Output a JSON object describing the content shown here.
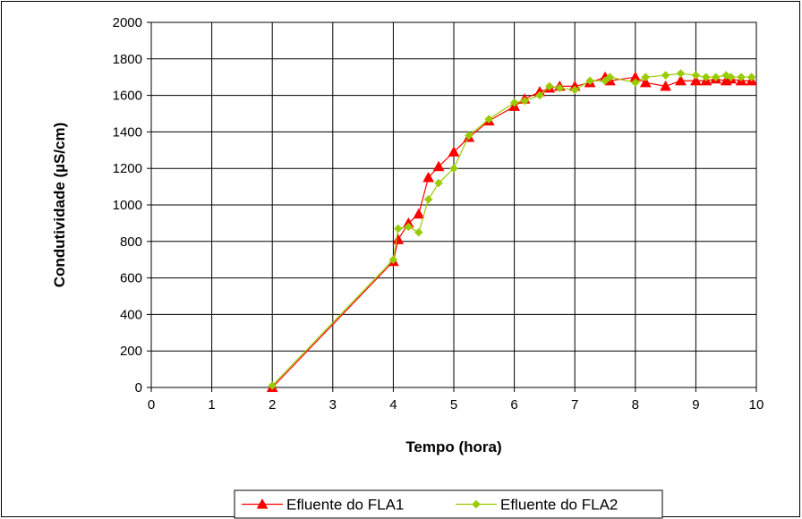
{
  "chart_data": {
    "type": "line",
    "title": "",
    "xlabel": "Tempo (hora)",
    "ylabel": "Condutividade (µS/cm)",
    "xlim": [
      0,
      10
    ],
    "ylim": [
      0,
      2000
    ],
    "xticks": [
      "0",
      "1",
      "2",
      "3",
      "4",
      "5",
      "6",
      "7",
      "8",
      "9",
      "10"
    ],
    "yticks": [
      "0",
      "200",
      "400",
      "600",
      "800",
      "1000",
      "1200",
      "1400",
      "1600",
      "1800",
      "2000"
    ],
    "grid": true,
    "legend_position": "bottom",
    "series": [
      {
        "name": "Efluente do FLA1",
        "color": "#ff0000",
        "marker": "triangle",
        "x": [
          2,
          4,
          4.08,
          4.25,
          4.42,
          4.58,
          4.75,
          5,
          5.25,
          5.58,
          6,
          6.17,
          6.42,
          6.58,
          6.75,
          7,
          7.25,
          7.5,
          7.58,
          8,
          8.17,
          8.5,
          8.75,
          9,
          9.17,
          9.33,
          9.5,
          9.58,
          9.75,
          9.92
        ],
        "y": [
          0,
          690,
          810,
          900,
          950,
          1150,
          1210,
          1290,
          1370,
          1460,
          1540,
          1580,
          1620,
          1640,
          1650,
          1650,
          1670,
          1700,
          1680,
          1700,
          1670,
          1650,
          1680,
          1680,
          1680,
          1690,
          1680,
          1690,
          1680,
          1680
        ]
      },
      {
        "name": "Efluente do FLA2",
        "color": "#99cc00",
        "marker": "diamond",
        "x": [
          2,
          4,
          4.08,
          4.25,
          4.42,
          4.58,
          4.75,
          5,
          5.25,
          5.58,
          6,
          6.17,
          6.42,
          6.58,
          6.75,
          7,
          7.25,
          7.5,
          7.58,
          8,
          8.17,
          8.5,
          8.75,
          9,
          9.17,
          9.33,
          9.5,
          9.58,
          9.75,
          9.92
        ],
        "y": [
          10,
          700,
          870,
          880,
          850,
          1030,
          1120,
          1200,
          1380,
          1470,
          1560,
          1570,
          1600,
          1650,
          1640,
          1630,
          1680,
          1680,
          1700,
          1670,
          1700,
          1710,
          1720,
          1710,
          1700,
          1700,
          1710,
          1700,
          1700,
          1700
        ]
      }
    ]
  }
}
